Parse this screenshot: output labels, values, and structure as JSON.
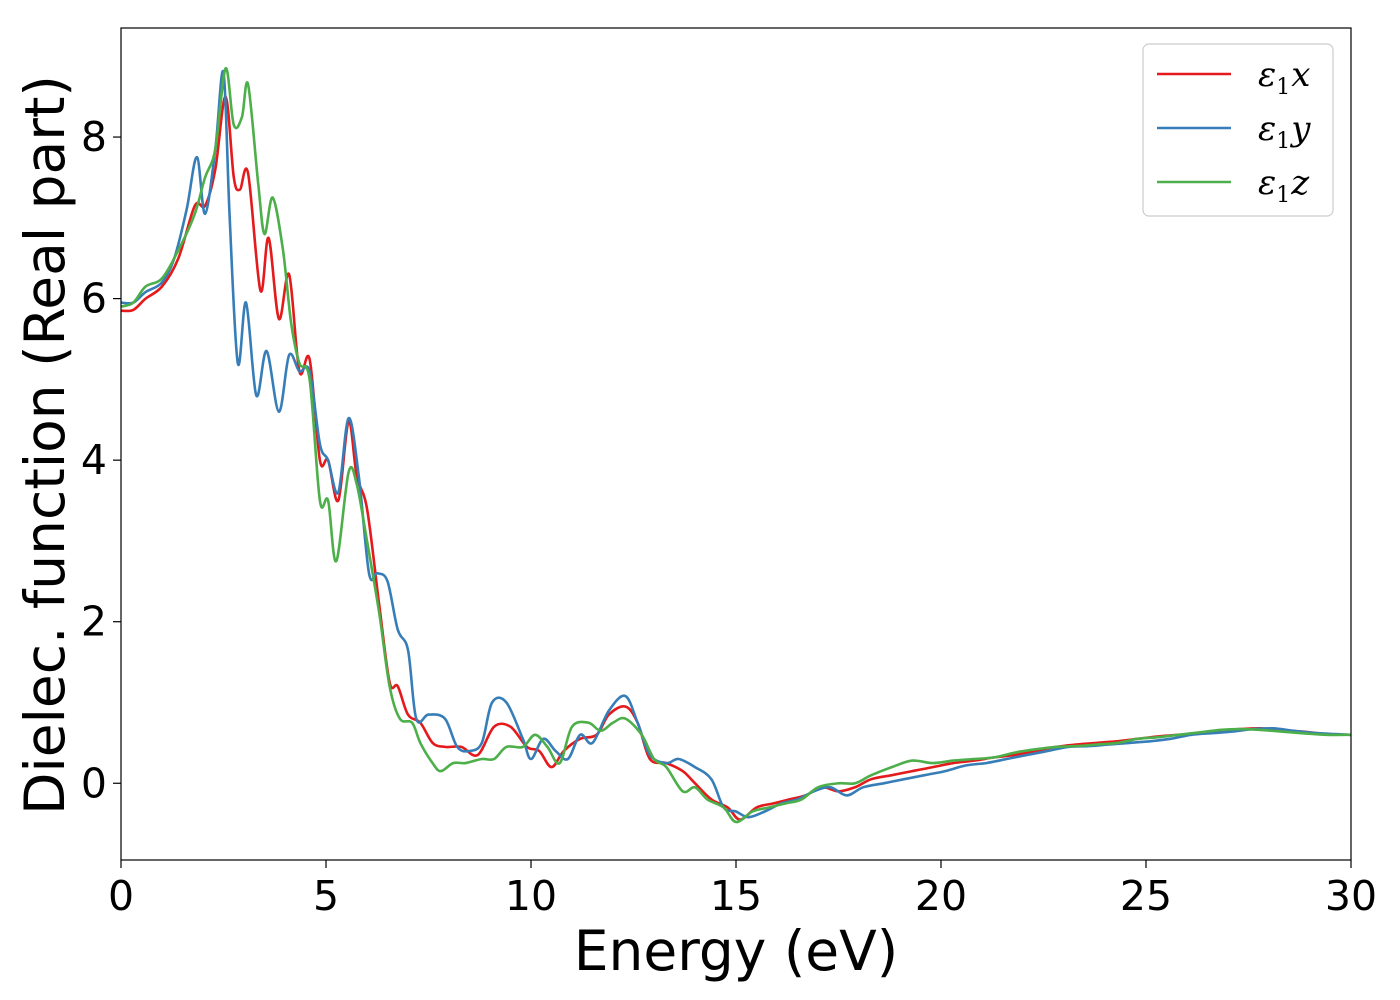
{
  "chart_data": {
    "type": "line",
    "title": "",
    "xlabel": "Energy (eV)",
    "ylabel": "Dielec. function (Real part)",
    "xlim": [
      0,
      30
    ],
    "ylim": [
      -0.95,
      9.35
    ],
    "xticks": [
      0,
      5,
      10,
      15,
      20,
      25,
      30
    ],
    "yticks": [
      0,
      2,
      4,
      6,
      8
    ],
    "grid": false,
    "legend_position": "top-right",
    "series": [
      {
        "name": "ε1x",
        "legend_symbol": "ε",
        "legend_sub": "1",
        "legend_axis": "x",
        "color": "#e41a1c",
        "points": [
          [
            0,
            5.85
          ],
          [
            0.3,
            5.86
          ],
          [
            0.6,
            6.0
          ],
          [
            1.0,
            6.15
          ],
          [
            1.4,
            6.5
          ],
          [
            1.8,
            7.15
          ],
          [
            2.05,
            7.15
          ],
          [
            2.3,
            7.6
          ],
          [
            2.55,
            8.5
          ],
          [
            2.75,
            7.5
          ],
          [
            2.9,
            7.35
          ],
          [
            3.1,
            7.55
          ],
          [
            3.4,
            6.1
          ],
          [
            3.6,
            6.75
          ],
          [
            3.85,
            5.75
          ],
          [
            4.1,
            6.3
          ],
          [
            4.35,
            5.1
          ],
          [
            4.6,
            5.25
          ],
          [
            4.85,
            4.0
          ],
          [
            5.05,
            4.0
          ],
          [
            5.3,
            3.5
          ],
          [
            5.55,
            4.48
          ],
          [
            5.75,
            3.8
          ],
          [
            6.0,
            3.4
          ],
          [
            6.3,
            2.2
          ],
          [
            6.55,
            1.25
          ],
          [
            6.75,
            1.2
          ],
          [
            7.0,
            0.85
          ],
          [
            7.3,
            0.75
          ],
          [
            7.6,
            0.5
          ],
          [
            7.9,
            0.45
          ],
          [
            8.3,
            0.45
          ],
          [
            8.7,
            0.35
          ],
          [
            9.1,
            0.7
          ],
          [
            9.5,
            0.7
          ],
          [
            9.9,
            0.45
          ],
          [
            10.2,
            0.4
          ],
          [
            10.5,
            0.2
          ],
          [
            10.8,
            0.4
          ],
          [
            11.2,
            0.55
          ],
          [
            11.6,
            0.6
          ],
          [
            11.9,
            0.85
          ],
          [
            12.3,
            0.95
          ],
          [
            12.6,
            0.75
          ],
          [
            12.9,
            0.3
          ],
          [
            13.3,
            0.25
          ],
          [
            13.7,
            0.15
          ],
          [
            14.0,
            0.0
          ],
          [
            14.4,
            -0.2
          ],
          [
            14.8,
            -0.3
          ],
          [
            15.1,
            -0.45
          ],
          [
            15.5,
            -0.3
          ],
          [
            15.9,
            -0.25
          ],
          [
            16.3,
            -0.2
          ],
          [
            16.7,
            -0.15
          ],
          [
            17.1,
            -0.05
          ],
          [
            17.5,
            -0.1
          ],
          [
            17.9,
            -0.05
          ],
          [
            18.3,
            0.05
          ],
          [
            18.8,
            0.1
          ],
          [
            19.3,
            0.15
          ],
          [
            19.8,
            0.2
          ],
          [
            20.3,
            0.25
          ],
          [
            20.8,
            0.28
          ],
          [
            21.3,
            0.32
          ],
          [
            21.8,
            0.35
          ],
          [
            22.3,
            0.4
          ],
          [
            22.8,
            0.45
          ],
          [
            23.3,
            0.48
          ],
          [
            23.8,
            0.5
          ],
          [
            24.3,
            0.52
          ],
          [
            24.8,
            0.55
          ],
          [
            25.3,
            0.58
          ],
          [
            25.8,
            0.6
          ],
          [
            26.3,
            0.62
          ],
          [
            26.8,
            0.65
          ],
          [
            27.3,
            0.67
          ],
          [
            27.8,
            0.68
          ],
          [
            28.3,
            0.66
          ],
          [
            28.8,
            0.64
          ],
          [
            29.4,
            0.61
          ],
          [
            30,
            0.6
          ]
        ]
      },
      {
        "name": "ε1y",
        "legend_symbol": "ε",
        "legend_sub": "1",
        "legend_axis": "y",
        "color": "#377eb8",
        "points": [
          [
            0,
            5.95
          ],
          [
            0.3,
            5.95
          ],
          [
            0.6,
            6.08
          ],
          [
            1.0,
            6.2
          ],
          [
            1.3,
            6.5
          ],
          [
            1.6,
            7.1
          ],
          [
            1.85,
            7.75
          ],
          [
            2.05,
            7.05
          ],
          [
            2.3,
            7.85
          ],
          [
            2.5,
            8.8
          ],
          [
            2.65,
            7.0
          ],
          [
            2.85,
            5.2
          ],
          [
            3.05,
            5.95
          ],
          [
            3.3,
            4.8
          ],
          [
            3.55,
            5.35
          ],
          [
            3.85,
            4.6
          ],
          [
            4.1,
            5.3
          ],
          [
            4.35,
            5.1
          ],
          [
            4.6,
            5.1
          ],
          [
            4.85,
            4.2
          ],
          [
            5.05,
            4.0
          ],
          [
            5.3,
            3.6
          ],
          [
            5.55,
            4.52
          ],
          [
            5.8,
            3.8
          ],
          [
            6.05,
            2.6
          ],
          [
            6.25,
            2.6
          ],
          [
            6.5,
            2.5
          ],
          [
            6.75,
            1.9
          ],
          [
            7.0,
            1.65
          ],
          [
            7.2,
            0.8
          ],
          [
            7.5,
            0.85
          ],
          [
            7.9,
            0.8
          ],
          [
            8.2,
            0.45
          ],
          [
            8.5,
            0.4
          ],
          [
            8.8,
            0.5
          ],
          [
            9.05,
            1.0
          ],
          [
            9.4,
            1.0
          ],
          [
            9.8,
            0.55
          ],
          [
            10.0,
            0.3
          ],
          [
            10.3,
            0.55
          ],
          [
            10.6,
            0.4
          ],
          [
            10.9,
            0.3
          ],
          [
            11.2,
            0.6
          ],
          [
            11.5,
            0.5
          ],
          [
            11.9,
            0.9
          ],
          [
            12.3,
            1.08
          ],
          [
            12.6,
            0.75
          ],
          [
            12.9,
            0.35
          ],
          [
            13.3,
            0.25
          ],
          [
            13.6,
            0.3
          ],
          [
            14.0,
            0.2
          ],
          [
            14.4,
            0.05
          ],
          [
            14.7,
            -0.3
          ],
          [
            15.0,
            -0.35
          ],
          [
            15.3,
            -0.42
          ],
          [
            15.7,
            -0.35
          ],
          [
            16.1,
            -0.25
          ],
          [
            16.5,
            -0.2
          ],
          [
            16.9,
            -0.1
          ],
          [
            17.3,
            -0.05
          ],
          [
            17.7,
            -0.15
          ],
          [
            18.1,
            -0.05
          ],
          [
            18.6,
            0.0
          ],
          [
            19.1,
            0.05
          ],
          [
            19.6,
            0.1
          ],
          [
            20.1,
            0.15
          ],
          [
            20.6,
            0.22
          ],
          [
            21.1,
            0.25
          ],
          [
            21.6,
            0.3
          ],
          [
            22.1,
            0.35
          ],
          [
            22.6,
            0.4
          ],
          [
            23.1,
            0.45
          ],
          [
            23.6,
            0.46
          ],
          [
            24.1,
            0.48
          ],
          [
            24.6,
            0.5
          ],
          [
            25.1,
            0.52
          ],
          [
            25.6,
            0.55
          ],
          [
            26.1,
            0.6
          ],
          [
            26.6,
            0.62
          ],
          [
            27.1,
            0.64
          ],
          [
            27.6,
            0.67
          ],
          [
            28.1,
            0.68
          ],
          [
            28.6,
            0.65
          ],
          [
            29.2,
            0.62
          ],
          [
            30,
            0.6
          ]
        ]
      },
      {
        "name": "ε1z",
        "legend_symbol": "ε",
        "legend_sub": "1",
        "legend_axis": "z",
        "color": "#4daf4a",
        "points": [
          [
            0,
            5.9
          ],
          [
            0.3,
            5.95
          ],
          [
            0.6,
            6.15
          ],
          [
            1.0,
            6.25
          ],
          [
            1.4,
            6.6
          ],
          [
            1.8,
            7.05
          ],
          [
            2.05,
            7.5
          ],
          [
            2.3,
            7.85
          ],
          [
            2.55,
            8.85
          ],
          [
            2.75,
            8.15
          ],
          [
            2.95,
            8.25
          ],
          [
            3.1,
            8.65
          ],
          [
            3.35,
            7.4
          ],
          [
            3.5,
            6.8
          ],
          [
            3.7,
            7.25
          ],
          [
            3.95,
            6.6
          ],
          [
            4.15,
            5.7
          ],
          [
            4.35,
            5.2
          ],
          [
            4.6,
            5.0
          ],
          [
            4.85,
            3.5
          ],
          [
            5.05,
            3.5
          ],
          [
            5.25,
            2.75
          ],
          [
            5.55,
            3.85
          ],
          [
            5.75,
            3.7
          ],
          [
            6.0,
            3.0
          ],
          [
            6.3,
            2.1
          ],
          [
            6.55,
            1.2
          ],
          [
            6.8,
            0.8
          ],
          [
            7.1,
            0.75
          ],
          [
            7.3,
            0.5
          ],
          [
            7.6,
            0.25
          ],
          [
            7.8,
            0.15
          ],
          [
            8.1,
            0.25
          ],
          [
            8.4,
            0.25
          ],
          [
            8.8,
            0.3
          ],
          [
            9.1,
            0.3
          ],
          [
            9.4,
            0.45
          ],
          [
            9.8,
            0.45
          ],
          [
            10.1,
            0.6
          ],
          [
            10.4,
            0.45
          ],
          [
            10.7,
            0.25
          ],
          [
            11.0,
            0.7
          ],
          [
            11.4,
            0.75
          ],
          [
            11.7,
            0.65
          ],
          [
            12.0,
            0.75
          ],
          [
            12.3,
            0.8
          ],
          [
            12.7,
            0.6
          ],
          [
            13.0,
            0.3
          ],
          [
            13.3,
            0.2
          ],
          [
            13.7,
            -0.1
          ],
          [
            14.0,
            -0.05
          ],
          [
            14.3,
            -0.2
          ],
          [
            14.7,
            -0.3
          ],
          [
            15.0,
            -0.48
          ],
          [
            15.4,
            -0.35
          ],
          [
            15.8,
            -0.3
          ],
          [
            16.2,
            -0.25
          ],
          [
            16.6,
            -0.2
          ],
          [
            17.0,
            -0.05
          ],
          [
            17.5,
            0.0
          ],
          [
            17.9,
            0.0
          ],
          [
            18.3,
            0.1
          ],
          [
            18.8,
            0.2
          ],
          [
            19.3,
            0.28
          ],
          [
            19.8,
            0.25
          ],
          [
            20.3,
            0.28
          ],
          [
            20.8,
            0.3
          ],
          [
            21.3,
            0.32
          ],
          [
            21.8,
            0.38
          ],
          [
            22.3,
            0.42
          ],
          [
            22.8,
            0.45
          ],
          [
            23.3,
            0.46
          ],
          [
            23.8,
            0.48
          ],
          [
            24.3,
            0.5
          ],
          [
            24.8,
            0.55
          ],
          [
            25.3,
            0.57
          ],
          [
            25.8,
            0.6
          ],
          [
            26.3,
            0.63
          ],
          [
            26.8,
            0.66
          ],
          [
            27.3,
            0.67
          ],
          [
            27.8,
            0.66
          ],
          [
            28.3,
            0.64
          ],
          [
            28.8,
            0.62
          ],
          [
            29.4,
            0.6
          ],
          [
            30,
            0.6
          ]
        ]
      }
    ]
  }
}
